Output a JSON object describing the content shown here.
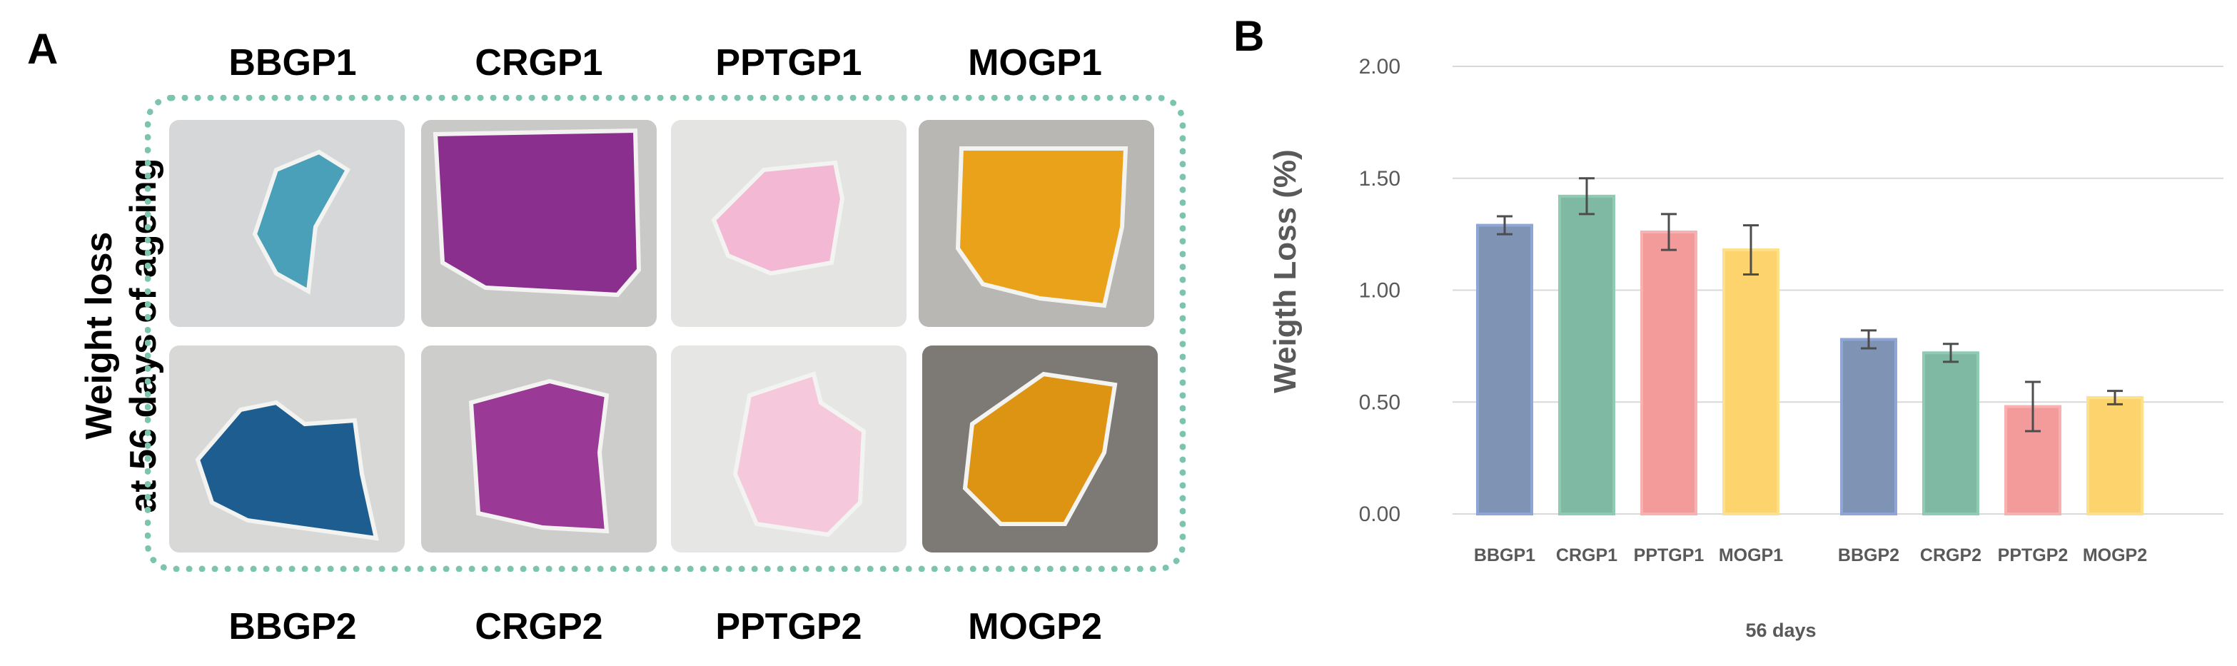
{
  "panel_a": {
    "letter": "A",
    "side_label_line1": "Weight loss",
    "side_label_line2": "at 56 days of ageing",
    "top_labels": [
      "BBGP1",
      "CRGP1",
      "PPTGP1",
      "MOGP1"
    ],
    "bottom_labels": [
      "BBGP2",
      "CRGP2",
      "PPTGP2",
      "MOGP2"
    ],
    "frame_color": "#7cc4b0",
    "sample_colors_top": [
      "#4aa0b8",
      "#8b2f8e",
      "#f2b8d4",
      "#e9a21a"
    ],
    "sample_colors_bottom": [
      "#1d5d8f",
      "#9b3a96",
      "#f6c8dc",
      "#dc9412"
    ]
  },
  "panel_b": {
    "letter": "B"
  },
  "chart_data": {
    "type": "bar",
    "ylabel": "Weigth Loss (%)",
    "xlabel": "56 days",
    "ylim": [
      0,
      2
    ],
    "yticks": [
      "0.00",
      "0.50",
      "1.00",
      "1.50",
      "2.00"
    ],
    "ytick_values": [
      0,
      0.5,
      1.0,
      1.5,
      2.0
    ],
    "grid": true,
    "groups": [
      {
        "categories": [
          "BBGP1",
          "CRGP1",
          "PPTGP1",
          "MOGP1"
        ],
        "values": [
          1.29,
          1.42,
          1.26,
          1.18
        ],
        "errors": [
          0.04,
          0.08,
          0.08,
          0.11
        ]
      },
      {
        "categories": [
          "BBGP2",
          "CRGP2",
          "PPTGP2",
          "MOGP2"
        ],
        "values": [
          0.78,
          0.72,
          0.48,
          0.52
        ],
        "errors": [
          0.04,
          0.04,
          0.11,
          0.03
        ]
      }
    ],
    "bar_colors": [
      "#7f93b5",
      "#7fb8a3",
      "#f39a9a",
      "#fdd36d"
    ],
    "bar_edge_colors": [
      "#8ea6d6",
      "#8fcab2",
      "#f8b1b1",
      "#fde089"
    ]
  }
}
